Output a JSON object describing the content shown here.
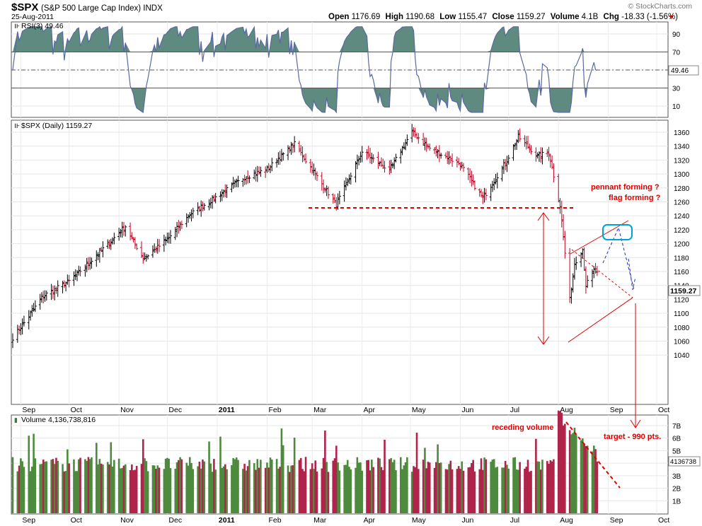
{
  "header": {
    "symbol": "$SPX",
    "name": "(S&P 500 Large Cap Index)",
    "exchange": "INDX",
    "date": "25-Aug-2011",
    "open_label": "Open",
    "open": "1176.69",
    "high_label": "High",
    "high": "1190.68",
    "low_label": "Low",
    "low": "1155.47",
    "close_label": "Close",
    "close": "1159.27",
    "volume_label": "Volume",
    "volume": "4.1B",
    "chg_label": "Chg",
    "chg": "-18.33 (-1.56%)",
    "watermark": "© StockCharts.com"
  },
  "colors": {
    "up_volume": "#4e8a3e",
    "down_volume": "#b0244b",
    "annotation": "#e00000",
    "rsi_fill": "#5f8a80",
    "rsi_line": "#5a6aa0",
    "target_box": "#00a0d8",
    "projection": "#2030c0"
  },
  "rsi": {
    "legend": "RSI(3) 49.46",
    "value_label": "49.46",
    "ticks": [
      "90",
      "70",
      "50",
      "30",
      "10"
    ],
    "overbought": 70,
    "oversold": 30
  },
  "price": {
    "legend": "$SPX (Daily) 1159.27",
    "last_label": "1159.27",
    "ticks": [
      "1360",
      "1340",
      "1320",
      "1300",
      "1280",
      "1260",
      "1240",
      "1220",
      "1200",
      "1180",
      "1160",
      "1140",
      "1120",
      "1100",
      "1080",
      "1060",
      "1040"
    ]
  },
  "volume_panel": {
    "legend": "Volume 4,136,738,816",
    "last_label": "4136738",
    "ticks": [
      "7B",
      "6B",
      "5B",
      "3B",
      "2B",
      "1B"
    ]
  },
  "x_axis": {
    "months": [
      "Sep",
      "Oct",
      "Nov",
      "Dec",
      "2011",
      "Feb",
      "Mar",
      "Apr",
      "May",
      "Jun",
      "Jul",
      "Aug",
      "Sep",
      "Oct"
    ]
  },
  "annotations": {
    "pennant": "pennant forming ?",
    "flag": "flag forming ?",
    "receding": "receding volume",
    "target": "target - 990 pts."
  },
  "chart_data": {
    "type": "ohlc",
    "title": "$SPX (S&P 500 Large Cap Index) INDX",
    "date_range": [
      "2010-08-27",
      "2011-08-25"
    ],
    "price_ylim": [
      1030,
      1375
    ],
    "rsi_ylim": [
      0,
      100
    ],
    "volume_ylim_billions": [
      0,
      8
    ],
    "close_path": [
      [
        "2010-08-27",
        1065
      ],
      [
        "2010-09-01",
        1080
      ],
      [
        "2010-09-15",
        1125
      ],
      [
        "2010-10-01",
        1146
      ],
      [
        "2010-10-15",
        1176
      ],
      [
        "2010-11-05",
        1225
      ],
      [
        "2010-11-16",
        1178
      ],
      [
        "2010-12-01",
        1206
      ],
      [
        "2010-12-15",
        1242
      ],
      [
        "2011-01-03",
        1271
      ],
      [
        "2011-01-18",
        1295
      ],
      [
        "2011-02-01",
        1307
      ],
      [
        "2011-02-18",
        1343
      ],
      [
        "2011-03-01",
        1306
      ],
      [
        "2011-03-16",
        1256
      ],
      [
        "2011-04-01",
        1332
      ],
      [
        "2011-04-18",
        1305
      ],
      [
        "2011-05-02",
        1361
      ],
      [
        "2011-05-13",
        1337
      ],
      [
        "2011-06-01",
        1314
      ],
      [
        "2011-06-15",
        1265
      ],
      [
        "2011-06-30",
        1320
      ],
      [
        "2011-07-07",
        1353
      ],
      [
        "2011-07-19",
        1326
      ],
      [
        "2011-07-26",
        1331
      ],
      [
        "2011-08-02",
        1254
      ],
      [
        "2011-08-08",
        1119
      ],
      [
        "2011-08-11",
        1172
      ],
      [
        "2011-08-16",
        1192
      ],
      [
        "2011-08-18",
        1140
      ],
      [
        "2011-08-23",
        1162
      ],
      [
        "2011-08-25",
        1159.27
      ]
    ],
    "last": {
      "open": 1176.69,
      "high": 1190.68,
      "low": 1155.47,
      "close": 1159.27,
      "volume": 4136738816,
      "rsi": 49.46
    },
    "support_level": 1262,
    "projected_target": 990,
    "legend": [
      "RSI(3) 49.46",
      "$SPX (Daily) 1159.27",
      "Volume 4,136,738,816"
    ]
  }
}
